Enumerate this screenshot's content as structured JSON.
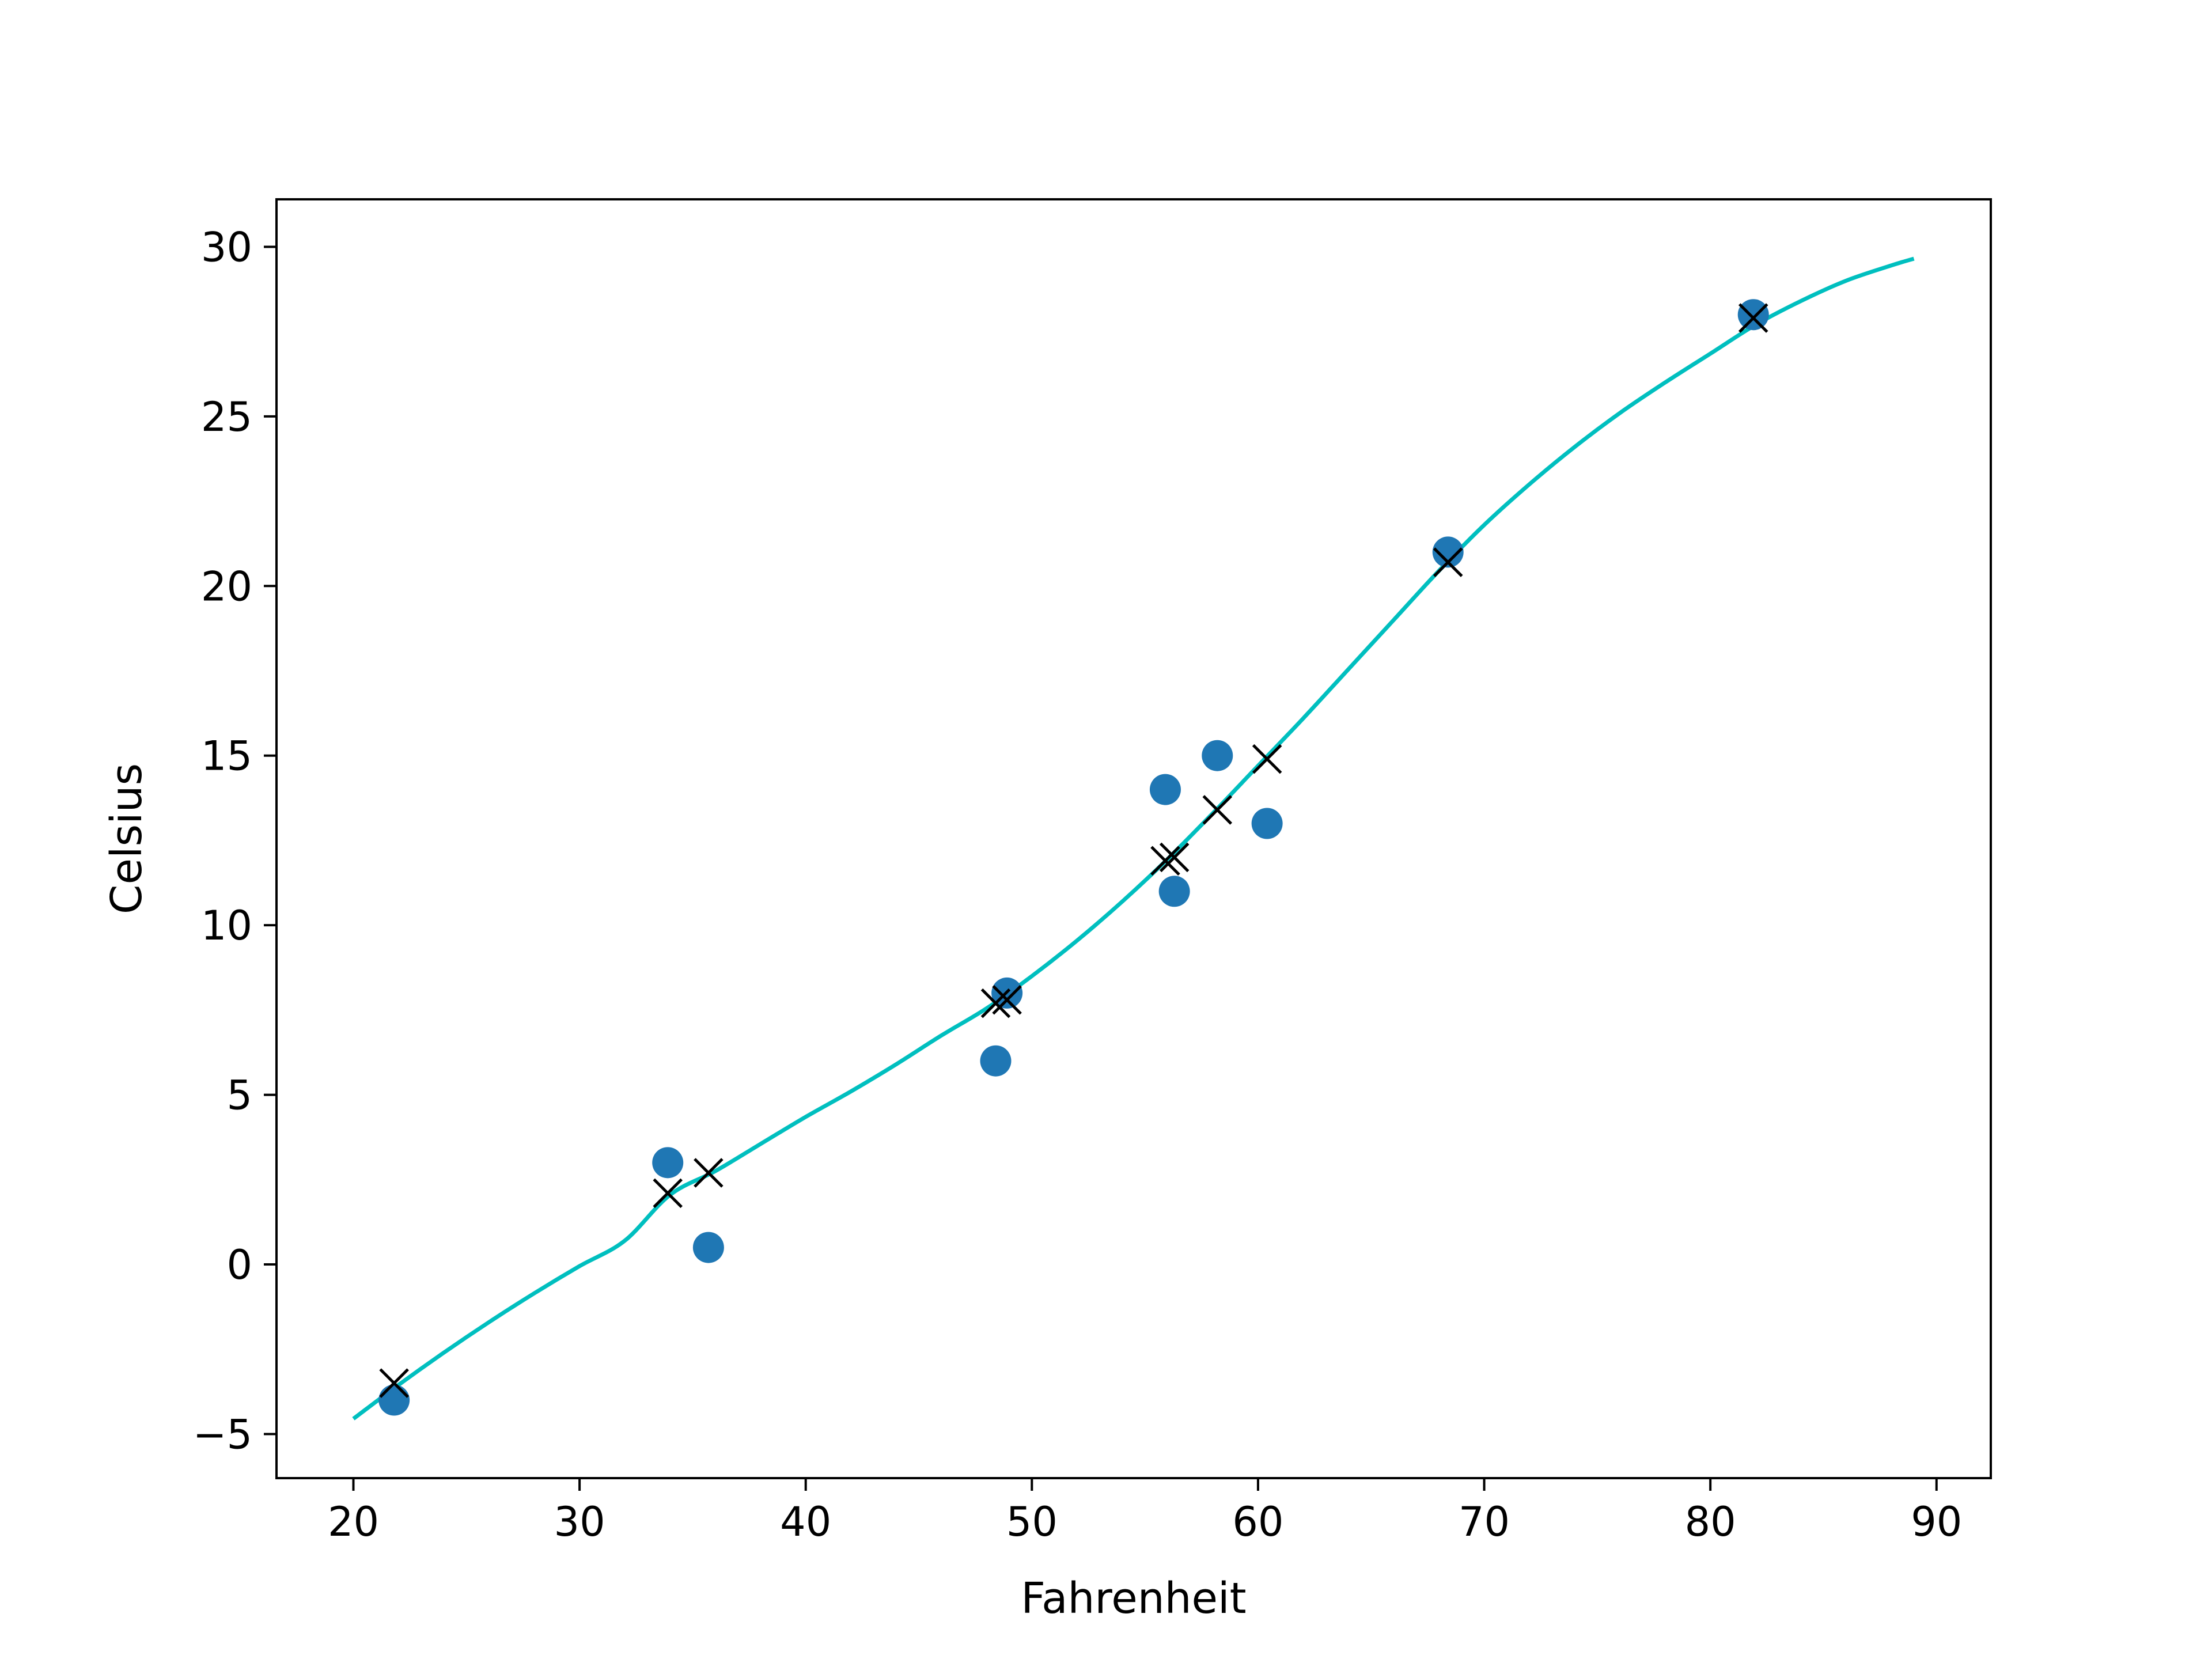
{
  "chart_data": {
    "type": "scatter",
    "xlabel": "Fahrenheit",
    "ylabel": "Celsius",
    "xlim": [
      16.6,
      92.4
    ],
    "ylim": [
      -6.3,
      31.4
    ],
    "x_ticks": [
      20,
      30,
      40,
      50,
      60,
      70,
      80,
      90
    ],
    "y_ticks": [
      -5,
      0,
      5,
      10,
      15,
      20,
      25,
      30
    ],
    "x_tick_labels": [
      "20",
      "30",
      "40",
      "50",
      "60",
      "70",
      "80",
      "90"
    ],
    "y_tick_labels": [
      "−5",
      "0",
      "5",
      "10",
      "15",
      "20",
      "25",
      "30"
    ],
    "grid": false,
    "series": [
      {
        "kind": "observed",
        "marker": "circle",
        "color": "#1f77b4",
        "points": [
          {
            "x": 21.8,
            "y": -4.0
          },
          {
            "x": 33.9,
            "y": 3.0
          },
          {
            "x": 35.7,
            "y": 0.5
          },
          {
            "x": 48.4,
            "y": 6.0
          },
          {
            "x": 48.9,
            "y": 8.0
          },
          {
            "x": 55.9,
            "y": 14.0
          },
          {
            "x": 56.3,
            "y": 11.0
          },
          {
            "x": 58.2,
            "y": 15.0
          },
          {
            "x": 60.4,
            "y": 13.0
          },
          {
            "x": 68.4,
            "y": 21.0
          },
          {
            "x": 81.9,
            "y": 28.0
          }
        ]
      },
      {
        "kind": "predicted",
        "marker": "x",
        "color": "#000000",
        "points": [
          {
            "x": 21.8,
            "y": -3.5
          },
          {
            "x": 33.9,
            "y": 2.1
          },
          {
            "x": 35.7,
            "y": 2.7
          },
          {
            "x": 48.4,
            "y": 7.7
          },
          {
            "x": 48.9,
            "y": 7.8
          },
          {
            "x": 55.9,
            "y": 11.9
          },
          {
            "x": 56.3,
            "y": 12.0
          },
          {
            "x": 58.2,
            "y": 13.4
          },
          {
            "x": 60.4,
            "y": 14.9
          },
          {
            "x": 68.4,
            "y": 20.7
          },
          {
            "x": 81.9,
            "y": 27.9
          }
        ]
      },
      {
        "kind": "fit",
        "marker": "line",
        "color": "#00bfbf",
        "points": [
          {
            "x": 20,
            "y": -4.55
          },
          {
            "x": 22,
            "y": -3.55
          },
          {
            "x": 24,
            "y": -2.6
          },
          {
            "x": 26,
            "y": -1.7
          },
          {
            "x": 28,
            "y": -0.85
          },
          {
            "x": 30,
            "y": -0.05
          },
          {
            "x": 32,
            "y": 0.7
          },
          {
            "x": 34,
            "y": 2.05
          },
          {
            "x": 36,
            "y": 2.75
          },
          {
            "x": 38,
            "y": 3.55
          },
          {
            "x": 40,
            "y": 4.35
          },
          {
            "x": 42,
            "y": 5.1
          },
          {
            "x": 44,
            "y": 5.9
          },
          {
            "x": 46,
            "y": 6.75
          },
          {
            "x": 48,
            "y": 7.55
          },
          {
            "x": 50,
            "y": 8.5
          },
          {
            "x": 52,
            "y": 9.55
          },
          {
            "x": 54,
            "y": 10.7
          },
          {
            "x": 56,
            "y": 11.95
          },
          {
            "x": 58,
            "y": 13.3
          },
          {
            "x": 60,
            "y": 14.7
          },
          {
            "x": 62,
            "y": 16.1
          },
          {
            "x": 64,
            "y": 17.55
          },
          {
            "x": 66,
            "y": 19.0
          },
          {
            "x": 68,
            "y": 20.45
          },
          {
            "x": 70,
            "y": 21.8
          },
          {
            "x": 72,
            "y": 23.0
          },
          {
            "x": 74,
            "y": 24.1
          },
          {
            "x": 76,
            "y": 25.1
          },
          {
            "x": 78,
            "y": 26.0
          },
          {
            "x": 80,
            "y": 26.85
          },
          {
            "x": 82,
            "y": 27.7
          },
          {
            "x": 84,
            "y": 28.4
          },
          {
            "x": 86,
            "y": 29.0
          },
          {
            "x": 88,
            "y": 29.45
          },
          {
            "x": 89,
            "y": 29.65
          }
        ]
      }
    ]
  }
}
